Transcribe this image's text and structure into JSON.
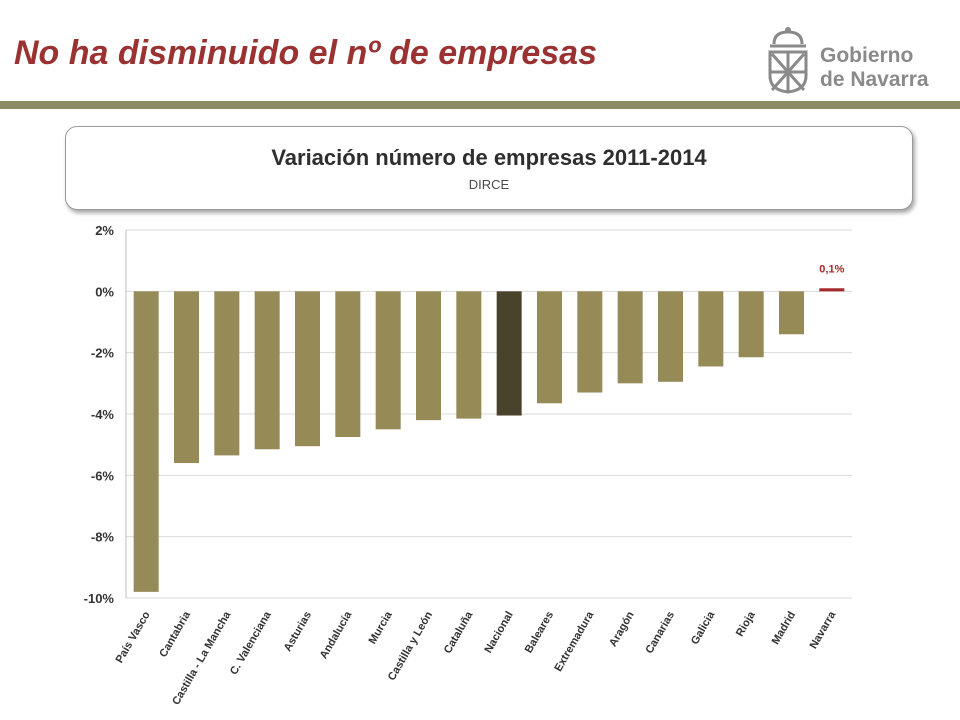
{
  "slide": {
    "title": "No ha disminuido el nº de empresas"
  },
  "logo": {
    "line1": "Gobierno",
    "line2": "de Navarra",
    "icon": "navarra-coat-of-arms-icon",
    "color": "#8a8a8a"
  },
  "colors": {
    "title": "#9a3232",
    "rule": "#8c8a63"
  },
  "chart_data": {
    "type": "bar",
    "title": "Variación número de empresas 2011-2014",
    "subtitle": "DIRCE",
    "xlabel": "",
    "ylabel": "",
    "ylim": [
      -10,
      2
    ],
    "yticks": [
      2,
      0,
      -2,
      -4,
      -6,
      -8,
      -10
    ],
    "ytick_labels": [
      "2%",
      "0%",
      "-2%",
      "-4%",
      "-6%",
      "-8%",
      "-10%"
    ],
    "grid": true,
    "categories": [
      "País Vasco",
      "Cantabria",
      "Castilla - La Mancha",
      "C. Valenciana",
      "Asturias",
      "Andalucía",
      "Murcia",
      "Castilla y León",
      "Cataluña",
      "Nacional",
      "Baleares",
      "Extremadura",
      "Aragón",
      "Canarias",
      "Galicia",
      "Rioja",
      "Madrid",
      "Navarra"
    ],
    "values": [
      -9.8,
      -5.6,
      -5.35,
      -5.15,
      -5.05,
      -4.75,
      -4.5,
      -4.2,
      -4.15,
      -4.05,
      -3.65,
      -3.3,
      -3.0,
      -2.95,
      -2.45,
      -2.15,
      -1.4,
      0.1
    ],
    "bar_colors": [
      "#968b57",
      "#968b57",
      "#968b57",
      "#968b57",
      "#968b57",
      "#968b57",
      "#968b57",
      "#968b57",
      "#968b57",
      "#4a432b",
      "#968b57",
      "#968b57",
      "#968b57",
      "#968b57",
      "#968b57",
      "#968b57",
      "#968b57",
      "#a3292b"
    ],
    "data_labels": [
      {
        "category": "Navarra",
        "text": "0,1%",
        "color": "#a3292b"
      }
    ]
  }
}
